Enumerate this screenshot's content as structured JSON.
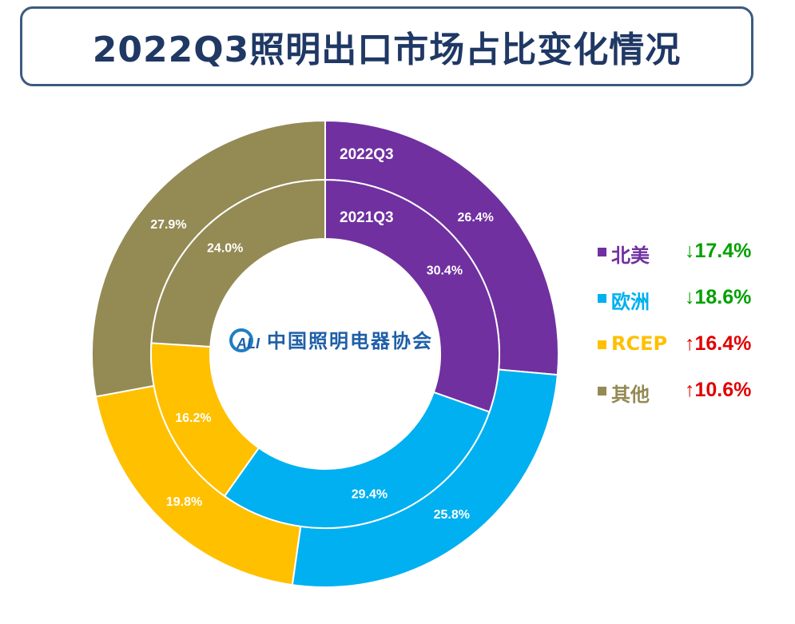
{
  "title": "2022Q3照明出口市场占比变化情况",
  "chart_data": {
    "type": "donut",
    "title": "2022Q3照明出口市场占比变化情况",
    "rings": [
      {
        "name": "2022Q3",
        "position": "outer",
        "values": [
          26.4,
          25.8,
          19.8,
          27.9
        ]
      },
      {
        "name": "2021Q3",
        "position": "inner",
        "values": [
          30.4,
          29.4,
          16.2,
          24.0
        ]
      }
    ],
    "categories": [
      "北美",
      "欧洲",
      "RCEP",
      "其他"
    ],
    "colors": [
      "#7030a0",
      "#00b0f0",
      "#ffc000",
      "#948a54"
    ],
    "value_labels": {
      "outer": [
        "26.4%",
        "25.8%",
        "19.8%",
        "27.9%"
      ],
      "inner": [
        "30.4%",
        "29.4%",
        "16.2%",
        "24.0%"
      ]
    },
    "legend_changes": [
      {
        "arrow": "↓",
        "value": "17.4%",
        "direction": "down"
      },
      {
        "arrow": "↓",
        "value": "18.6%",
        "direction": "down"
      },
      {
        "arrow": "↑",
        "value": "16.4%",
        "direction": "up"
      },
      {
        "arrow": "↑",
        "value": "10.6%",
        "direction": "up"
      }
    ],
    "change_colors": {
      "down": "#00a000",
      "up": "#e00000"
    },
    "legend_placement": "right"
  },
  "logo": {
    "mark_text": "ALI",
    "name": "中国照明电器协会"
  }
}
